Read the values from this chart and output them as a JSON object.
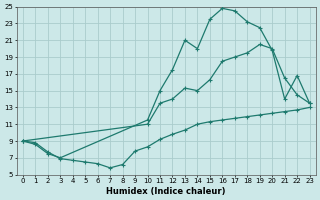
{
  "xlabel": "Humidex (Indice chaleur)",
  "bg_color": "#cce8e8",
  "grid_color": "#aacccc",
  "line_color": "#1e7a6e",
  "xlim": [
    -0.5,
    23.5
  ],
  "ylim": [
    5,
    25
  ],
  "xticks": [
    0,
    1,
    2,
    3,
    4,
    5,
    6,
    7,
    8,
    9,
    10,
    11,
    12,
    13,
    14,
    15,
    16,
    17,
    18,
    19,
    20,
    21,
    22,
    23
  ],
  "yticks": [
    5,
    7,
    9,
    11,
    13,
    15,
    17,
    19,
    21,
    23,
    25
  ],
  "curve1_x": [
    0,
    1,
    2,
    3,
    10,
    11,
    12,
    13,
    14,
    15,
    16,
    17,
    18,
    19,
    20,
    21,
    22,
    23
  ],
  "curve1_y": [
    9,
    8.6,
    7.5,
    7.0,
    11.5,
    15.0,
    17.5,
    21.0,
    20.0,
    23.5,
    24.8,
    24.5,
    23.2,
    22.5,
    19.8,
    14.0,
    16.8,
    13.5
  ],
  "curve2_x": [
    0,
    10,
    11,
    12,
    13,
    14,
    15,
    16,
    17,
    18,
    19,
    20,
    21,
    22,
    23
  ],
  "curve2_y": [
    9,
    11.0,
    13.5,
    14.0,
    15.3,
    15.0,
    16.3,
    18.5,
    19.0,
    19.5,
    20.5,
    20.0,
    16.5,
    14.5,
    13.5
  ],
  "curve3_x": [
    0,
    1,
    2,
    3,
    4,
    5,
    6,
    7,
    8,
    9,
    10,
    11,
    12,
    13,
    14,
    15,
    16,
    17,
    18,
    19,
    20,
    21,
    22,
    23
  ],
  "curve3_y": [
    9,
    8.8,
    7.7,
    6.9,
    6.7,
    6.5,
    6.3,
    5.8,
    6.2,
    7.8,
    8.3,
    9.2,
    9.8,
    10.3,
    11.0,
    11.3,
    11.5,
    11.7,
    11.9,
    12.1,
    12.3,
    12.5,
    12.7,
    13.0
  ],
  "markersize": 3,
  "linewidth": 0.9
}
